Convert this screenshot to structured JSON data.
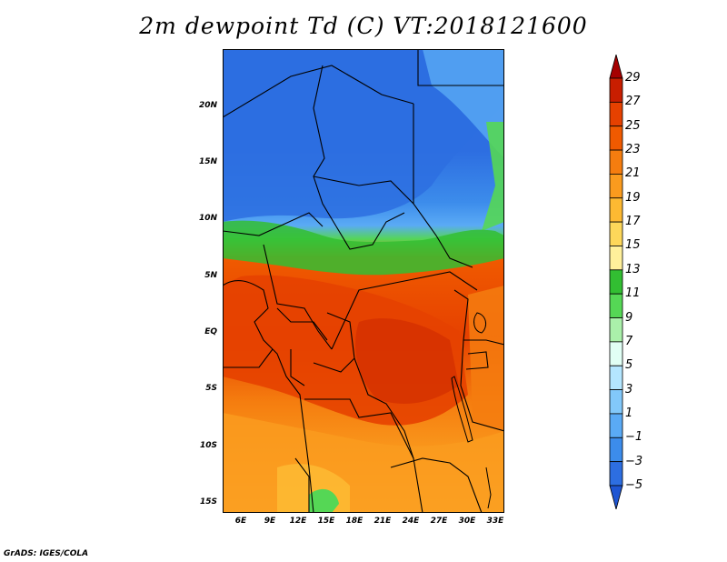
{
  "title": "2m dewpoint Td (C) VT:2018121600",
  "lat_labels": [
    "20N",
    "15N",
    "10N",
    "5N",
    "EQ",
    "5S",
    "10S",
    "15S"
  ],
  "lon_labels": [
    "6E",
    "9E",
    "12E",
    "15E",
    "18E",
    "21E",
    "24E",
    "27E",
    "30E",
    "33E"
  ],
  "colorbar": {
    "labels": [
      "29",
      "27",
      "25",
      "23",
      "21",
      "19",
      "17",
      "15",
      "13",
      "11",
      "9",
      "7",
      "5",
      "3",
      "1",
      "−1",
      "−3",
      "−5"
    ],
    "colors": [
      "#a50000",
      "#c81e00",
      "#e64100",
      "#f05a00",
      "#f57d0f",
      "#fa9b1e",
      "#fdb932",
      "#fdd75a",
      "#fff09b",
      "#32be32",
      "#55d755",
      "#aaf0aa",
      "#e1fff5",
      "#b4e6ff",
      "#82c8fa",
      "#5aaaf5",
      "#3c8ceb",
      "#2d6ee1",
      "#1e55d2"
    ]
  },
  "credit": "GrADS: IGES/COLA"
}
